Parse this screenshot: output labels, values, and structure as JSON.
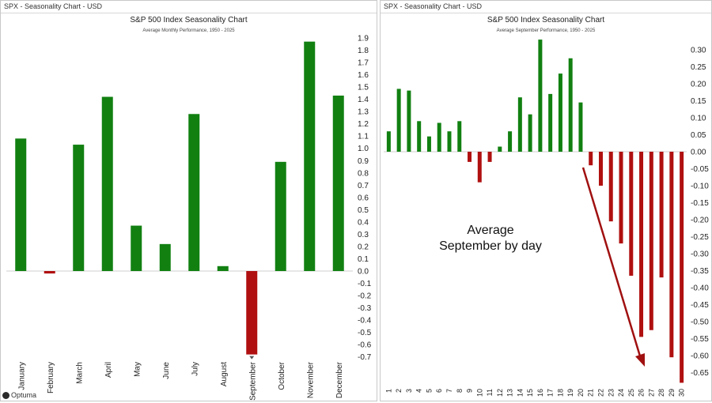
{
  "left_panel": {
    "header": "SPX - Seasonality Chart - USD",
    "logo_text": "Optuma"
  },
  "right_panel": {
    "header": "SPX - Seasonality Chart - USD",
    "annotation_line1": "Average",
    "annotation_line2": "September by day"
  },
  "colors": {
    "up": "#118011",
    "down": "#b01010",
    "arrow": "#a01010"
  },
  "chart_data": [
    {
      "type": "bar",
      "title": "S&P 500 Index Seasonality Chart",
      "subtitle": "Average Monthly Performance, 1950 - 2025",
      "categories": [
        "January",
        "February",
        "March",
        "April",
        "May",
        "June",
        "July",
        "August",
        "September",
        "October",
        "November",
        "December"
      ],
      "values": [
        1.08,
        -0.02,
        1.03,
        1.42,
        0.37,
        0.22,
        1.28,
        0.04,
        -0.68,
        0.89,
        1.87,
        1.43
      ],
      "ylim": [
        -0.7,
        1.9
      ],
      "yticks": [
        "1.9",
        "1.8",
        "1.7",
        "1.6",
        "1.5",
        "1.4",
        "1.3",
        "1.2",
        "1.1",
        "1.0",
        "0.9",
        "0.8",
        "0.7",
        "0.6",
        "0.5",
        "0.4",
        "0.3",
        "0.2",
        "0.1",
        "0.0",
        "-0.1",
        "-0.2",
        "-0.3",
        "-0.4",
        "-0.5",
        "-0.6",
        "-0.7"
      ],
      "ytick_values": [
        1.9,
        1.8,
        1.7,
        1.6,
        1.5,
        1.4,
        1.3,
        1.2,
        1.1,
        1.0,
        0.9,
        0.8,
        0.7,
        0.6,
        0.5,
        0.4,
        0.3,
        0.2,
        0.1,
        0.0,
        -0.1,
        -0.2,
        -0.3,
        -0.4,
        -0.5,
        -0.6,
        -0.7
      ],
      "grid": false,
      "y_axis_side": "right"
    },
    {
      "type": "bar",
      "title": "S&P 500 Index Seasonality Chart",
      "subtitle": "Average September Performance, 1950 - 2025",
      "categories": [
        "1",
        "2",
        "3",
        "4",
        "5",
        "6",
        "7",
        "8",
        "9",
        "10",
        "11",
        "12",
        "13",
        "14",
        "15",
        "16",
        "17",
        "18",
        "19",
        "20",
        "21",
        "22",
        "23",
        "24",
        "25",
        "26",
        "27",
        "28",
        "29",
        "30"
      ],
      "values": [
        0.06,
        0.185,
        0.18,
        0.09,
        0.045,
        0.085,
        0.06,
        0.09,
        -0.03,
        -0.09,
        -0.03,
        0.015,
        0.06,
        0.16,
        0.11,
        0.33,
        0.17,
        0.23,
        0.275,
        0.145,
        -0.04,
        -0.1,
        -0.205,
        -0.27,
        -0.365,
        -0.545,
        -0.525,
        -0.37,
        -0.605,
        -0.68
      ],
      "ylim": [
        -0.68,
        0.33
      ],
      "yticks": [
        "0.30",
        "0.25",
        "0.20",
        "0.15",
        "0.10",
        "0.05",
        "0.00",
        "-0.05",
        "-0.10",
        "-0.15",
        "-0.20",
        "-0.25",
        "-0.30",
        "-0.35",
        "-0.40",
        "-0.45",
        "-0.50",
        "-0.55",
        "-0.60",
        "-0.65"
      ],
      "ytick_values": [
        0.3,
        0.25,
        0.2,
        0.15,
        0.1,
        0.05,
        0.0,
        -0.05,
        -0.1,
        -0.15,
        -0.2,
        -0.25,
        -0.3,
        -0.35,
        -0.4,
        -0.45,
        -0.5,
        -0.55,
        -0.6,
        -0.65
      ],
      "grid": false,
      "y_axis_side": "right"
    }
  ]
}
